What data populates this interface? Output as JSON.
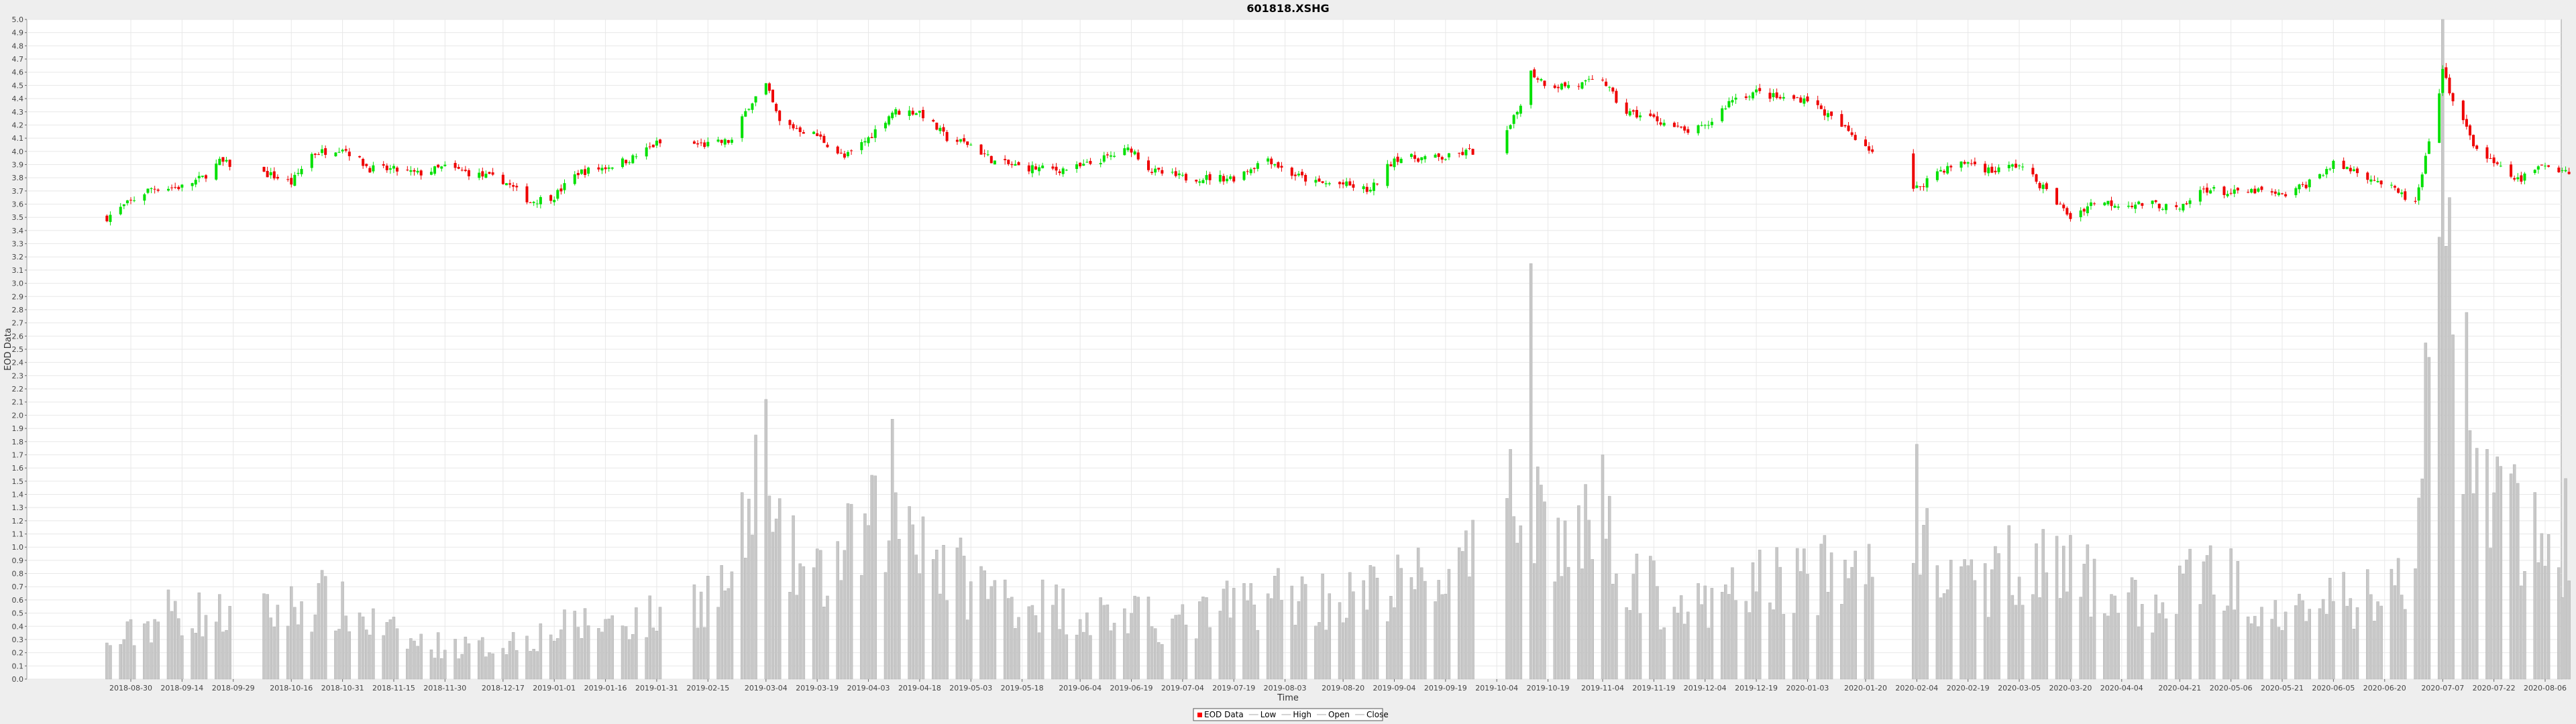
{
  "chart_data": {
    "type": "candlestick",
    "title": "601818.XSHG",
    "xlabel": "Time",
    "ylabel": "EOD Data",
    "ylim": [
      0.0,
      5.0
    ],
    "ytick_step": 0.1,
    "grid": true,
    "legend_placement": "bottom-center",
    "x_tick_labels": [
      "2018-08-30",
      "2018-09-14",
      "2018-09-29",
      "2018-10-16",
      "2018-10-31",
      "2018-11-15",
      "2018-11-30",
      "2018-12-17",
      "2019-01-01",
      "2019-01-16",
      "2019-01-31",
      "2019-02-15",
      "2019-03-04",
      "2019-03-19",
      "2019-04-03",
      "2019-04-18",
      "2019-05-03",
      "2019-05-18",
      "2019-06-04",
      "2019-06-19",
      "2019-07-04",
      "2019-07-19",
      "2019-08-03",
      "2019-08-20",
      "2019-09-04",
      "2019-09-19",
      "2019-10-04",
      "2019-10-19",
      "2019-11-04",
      "2019-11-19",
      "2019-12-04",
      "2019-12-19",
      "2020-01-03",
      "2020-01-20",
      "2020-02-04",
      "2020-02-19",
      "2020-03-05",
      "2020-03-20",
      "2020-04-04",
      "2020-04-21",
      "2020-05-06",
      "2020-05-21",
      "2020-06-05",
      "2020-06-20",
      "2020-07-07",
      "2020-07-22",
      "2020-08-06"
    ],
    "legend": [
      {
        "label": "EOD Data",
        "color": "#ff0000",
        "kind": "box"
      },
      {
        "label": "Low",
        "color": "#aaaaaa",
        "kind": "line"
      },
      {
        "label": "High",
        "color": "#aaaaaa",
        "kind": "line"
      },
      {
        "label": "Open",
        "color": "#aaaaaa",
        "kind": "line"
      },
      {
        "label": "Close",
        "color": "#aaaaaa",
        "kind": "line"
      }
    ],
    "colors": {
      "up": "#00e000",
      "down": "#ee0000",
      "volume": "#c8c8c8",
      "grid": "#e8e8e8"
    },
    "close_anchors": [
      [
        "2018-08-23",
        3.5
      ],
      [
        "2018-08-30",
        3.62
      ],
      [
        "2018-09-05",
        3.72
      ],
      [
        "2018-09-14",
        3.73
      ],
      [
        "2018-09-20",
        3.8
      ],
      [
        "2018-09-25",
        3.92
      ],
      [
        "2018-10-10",
        3.82
      ],
      [
        "2018-10-16",
        3.76
      ],
      [
        "2018-10-22",
        3.98
      ],
      [
        "2018-10-31",
        4.03
      ],
      [
        "2018-11-08",
        3.87
      ],
      [
        "2018-11-15",
        3.86
      ],
      [
        "2018-11-22",
        3.83
      ],
      [
        "2018-11-30",
        3.88
      ],
      [
        "2018-12-10",
        3.82
      ],
      [
        "2018-12-17",
        3.78
      ],
      [
        "2018-12-25",
        3.62
      ],
      [
        "2019-01-01",
        3.66
      ],
      [
        "2019-01-08",
        3.84
      ],
      [
        "2019-01-16",
        3.88
      ],
      [
        "2019-01-24",
        3.95
      ],
      [
        "2019-01-31",
        4.06
      ],
      [
        "2019-02-15",
        4.05
      ],
      [
        "2019-02-22",
        4.08
      ],
      [
        "2019-02-27",
        4.35
      ],
      [
        "2019-03-04",
        4.5
      ],
      [
        "2019-03-08",
        4.22
      ],
      [
        "2019-03-19",
        4.12
      ],
      [
        "2019-03-27",
        3.95
      ],
      [
        "2019-04-03",
        4.1
      ],
      [
        "2019-04-10",
        4.3
      ],
      [
        "2019-04-18",
        4.3
      ],
      [
        "2019-04-26",
        4.1
      ],
      [
        "2019-05-03",
        4.05
      ],
      [
        "2019-05-10",
        3.92
      ],
      [
        "2019-05-18",
        3.88
      ],
      [
        "2019-05-28",
        3.86
      ],
      [
        "2019-06-04",
        3.88
      ],
      [
        "2019-06-19",
        4.02
      ],
      [
        "2019-06-25",
        3.85
      ],
      [
        "2019-07-04",
        3.8
      ],
      [
        "2019-07-19",
        3.8
      ],
      [
        "2019-07-29",
        3.95
      ],
      [
        "2019-08-03",
        3.85
      ],
      [
        "2019-08-12",
        3.76
      ],
      [
        "2019-08-20",
        3.75
      ],
      [
        "2019-08-28",
        3.7
      ],
      [
        "2019-09-04",
        3.95
      ],
      [
        "2019-09-19",
        3.95
      ],
      [
        "2019-09-26",
        4.0
      ],
      [
        "2019-10-04",
        3.98
      ],
      [
        "2019-10-10",
        4.3
      ],
      [
        "2019-10-14",
        4.6
      ],
      [
        "2019-10-19",
        4.5
      ],
      [
        "2019-10-28",
        4.5
      ],
      [
        "2019-11-04",
        4.55
      ],
      [
        "2019-11-10",
        4.3
      ],
      [
        "2019-11-19",
        4.25
      ],
      [
        "2019-11-28",
        4.15
      ],
      [
        "2019-12-04",
        4.18
      ],
      [
        "2019-12-12",
        4.4
      ],
      [
        "2019-12-19",
        4.45
      ],
      [
        "2019-12-26",
        4.4
      ],
      [
        "2020-01-03",
        4.4
      ],
      [
        "2020-01-10",
        4.25
      ],
      [
        "2020-01-20",
        4.05
      ],
      [
        "2020-02-03",
        3.7
      ],
      [
        "2020-02-10",
        3.85
      ],
      [
        "2020-02-19",
        3.92
      ],
      [
        "2020-02-26",
        3.85
      ],
      [
        "2020-03-05",
        3.9
      ],
      [
        "2020-03-13",
        3.7
      ],
      [
        "2020-03-20",
        3.5
      ],
      [
        "2020-03-27",
        3.62
      ],
      [
        "2020-04-04",
        3.6
      ],
      [
        "2020-04-14",
        3.6
      ],
      [
        "2020-04-21",
        3.55
      ],
      [
        "2020-04-28",
        3.72
      ],
      [
        "2020-05-06",
        3.68
      ],
      [
        "2020-05-14",
        3.7
      ],
      [
        "2020-05-21",
        3.66
      ],
      [
        "2020-05-28",
        3.75
      ],
      [
        "2020-06-05",
        3.9
      ],
      [
        "2020-06-12",
        3.85
      ],
      [
        "2020-06-20",
        3.75
      ],
      [
        "2020-06-29",
        3.6
      ],
      [
        "2020-07-03",
        4.05
      ],
      [
        "2020-07-07",
        4.6
      ],
      [
        "2020-07-10",
        4.4
      ],
      [
        "2020-07-16",
        4.05
      ],
      [
        "2020-07-22",
        3.9
      ],
      [
        "2020-07-29",
        3.78
      ],
      [
        "2020-08-06",
        3.9
      ],
      [
        "2020-08-13",
        3.85
      ]
    ],
    "volume_anchors": [
      [
        "2018-08-23",
        0.25
      ],
      [
        "2018-09-10",
        0.55
      ],
      [
        "2018-10-05",
        0.5
      ],
      [
        "2018-10-25",
        0.65
      ],
      [
        "2018-11-20",
        0.3
      ],
      [
        "2018-12-10",
        0.25
      ],
      [
        "2019-01-10",
        0.45
      ],
      [
        "2019-01-31",
        0.5
      ],
      [
        "2019-02-22",
        0.8
      ],
      [
        "2019-03-01",
        1.5
      ],
      [
        "2019-03-06",
        1.1
      ],
      [
        "2019-03-19",
        0.8
      ],
      [
        "2019-04-03",
        1.2
      ],
      [
        "2019-04-12",
        1.4
      ],
      [
        "2019-04-18",
        1.3
      ],
      [
        "2019-04-26",
        0.9
      ],
      [
        "2019-05-10",
        0.7
      ],
      [
        "2019-06-04",
        0.55
      ],
      [
        "2019-07-04",
        0.45
      ],
      [
        "2019-07-29",
        0.7
      ],
      [
        "2019-08-20",
        0.65
      ],
      [
        "2019-09-04",
        0.75
      ],
      [
        "2019-09-26",
        0.9
      ],
      [
        "2019-10-04",
        1.2
      ],
      [
        "2019-10-14",
        1.6
      ],
      [
        "2019-10-22",
        1.1
      ],
      [
        "2019-11-04",
        1.2
      ],
      [
        "2019-11-19",
        0.7
      ],
      [
        "2019-12-04",
        0.55
      ],
      [
        "2019-12-19",
        0.8
      ],
      [
        "2020-01-10",
        0.85
      ],
      [
        "2020-01-20",
        0.9
      ],
      [
        "2020-02-04",
        1.1
      ],
      [
        "2020-02-19",
        0.7
      ],
      [
        "2020-03-05",
        1.0
      ],
      [
        "2020-03-20",
        0.85
      ],
      [
        "2020-04-14",
        0.55
      ],
      [
        "2020-04-28",
        0.9
      ],
      [
        "2020-05-14",
        0.7
      ],
      [
        "2020-06-05",
        0.6
      ],
      [
        "2020-06-29",
        0.8
      ],
      [
        "2020-07-03",
        2.6
      ],
      [
        "2020-07-07",
        3.8
      ],
      [
        "2020-07-14",
        2.2
      ],
      [
        "2020-07-22",
        1.4
      ],
      [
        "2020-08-06",
        1.1
      ],
      [
        "2020-08-13",
        0.8
      ]
    ],
    "volume_spikes": [
      [
        "2019-03-04",
        2.12
      ],
      [
        "2019-04-10",
        1.97
      ],
      [
        "2019-10-14",
        3.15
      ],
      [
        "2019-11-04",
        1.7
      ],
      [
        "2020-02-04",
        1.78
      ],
      [
        "2020-07-06",
        3.35
      ],
      [
        "2020-07-07",
        5.0
      ],
      [
        "2020-07-09",
        3.65
      ],
      [
        "2020-08-01",
        2.57
      ],
      [
        "2020-08-12",
        1.52
      ]
    ],
    "gaps": [
      [
        "2018-09-30",
        "2018-10-07"
      ],
      [
        "2019-02-03",
        "2019-02-10"
      ],
      [
        "2019-09-30",
        "2019-10-06"
      ],
      [
        "2020-01-23",
        "2020-02-02"
      ]
    ]
  }
}
